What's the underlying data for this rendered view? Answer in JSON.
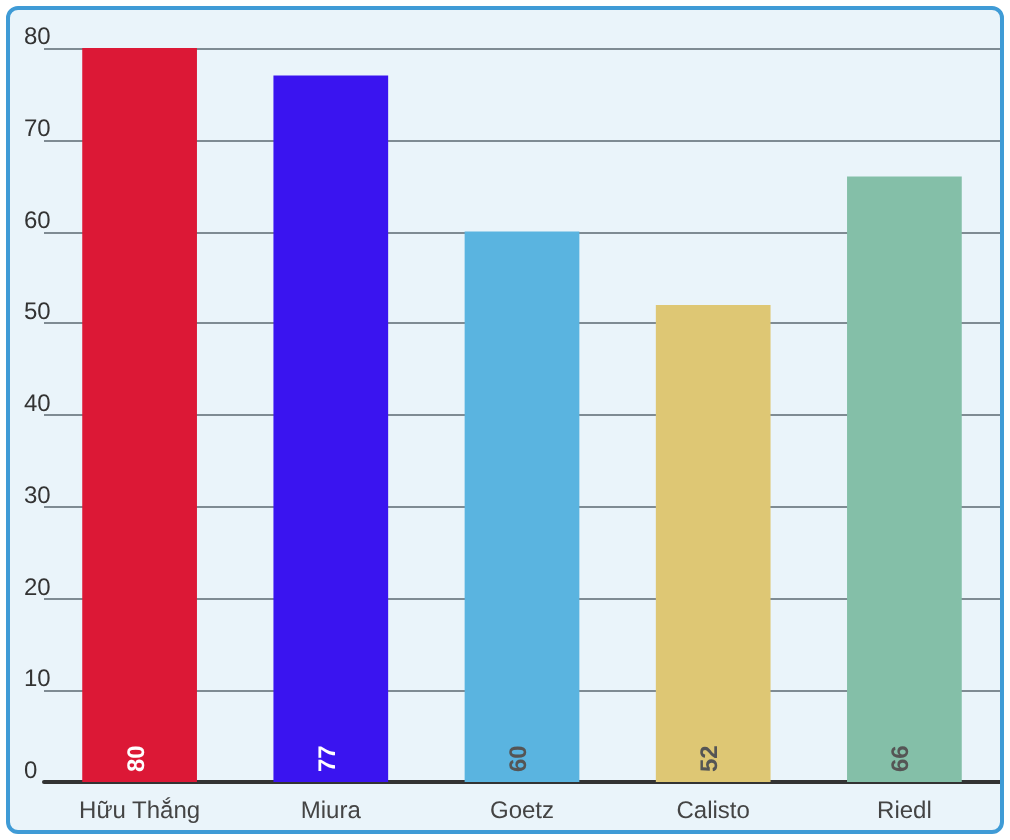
{
  "chart_data": {
    "type": "bar",
    "categories": [
      "Hữu Thắng",
      "Miura",
      "Goetz",
      "Calisto",
      "Riedl"
    ],
    "values": [
      80,
      77,
      60,
      52,
      66
    ],
    "colors": [
      "#dc1836",
      "#3a14f0",
      "#5ab4e0",
      "#dec774",
      "#84bfa8"
    ],
    "ylim": [
      0,
      80
    ],
    "yticks": [
      0,
      10,
      20,
      30,
      40,
      50,
      60,
      70,
      80
    ],
    "grid": "y",
    "data_labels": true
  }
}
